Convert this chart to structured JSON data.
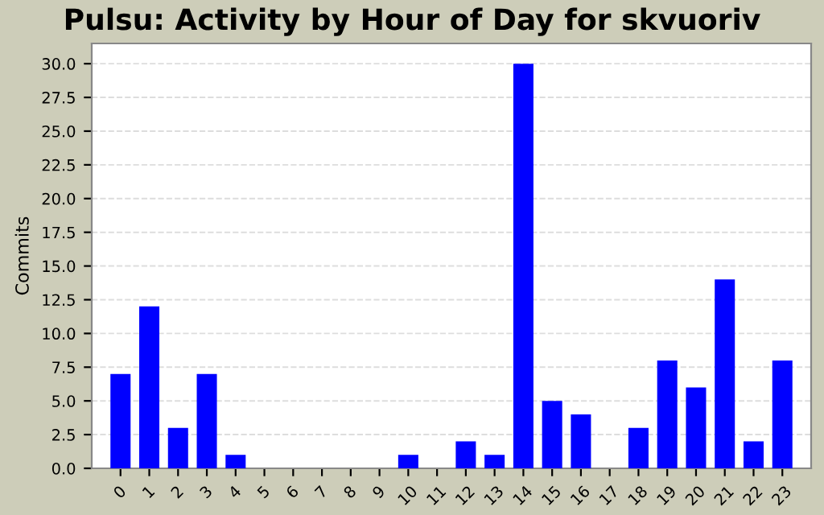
{
  "chart_data": {
    "type": "bar",
    "title": "Pulsu: Activity by Hour of Day for skvuoriv",
    "ylabel": "Commits",
    "categories": [
      "0",
      "1",
      "2",
      "3",
      "4",
      "5",
      "6",
      "7",
      "8",
      "9",
      "10",
      "11",
      "12",
      "13",
      "14",
      "15",
      "16",
      "17",
      "18",
      "19",
      "20",
      "21",
      "22",
      "23"
    ],
    "values": [
      7,
      12,
      3,
      7,
      1,
      0,
      0,
      0,
      0,
      0,
      1,
      0,
      2,
      1,
      30,
      5,
      4,
      0,
      3,
      8,
      6,
      14,
      2,
      8
    ],
    "color": "#0000ff",
    "ylim": [
      0,
      31.5
    ],
    "yticks": [
      {
        "value": 0,
        "label": "0.0"
      },
      2.5,
      {
        "value": 5,
        "label": "5.0"
      },
      7.5,
      {
        "value": 10,
        "label": "10.0"
      },
      12.5,
      {
        "value": 15,
        "label": "15.0"
      },
      17.5,
      {
        "value": 20,
        "label": "20.0"
      },
      22.5,
      {
        "value": 25,
        "label": "25.0"
      },
      27.5,
      {
        "value": 30,
        "label": "30.0"
      }
    ],
    "grid": "y",
    "legend": false
  }
}
